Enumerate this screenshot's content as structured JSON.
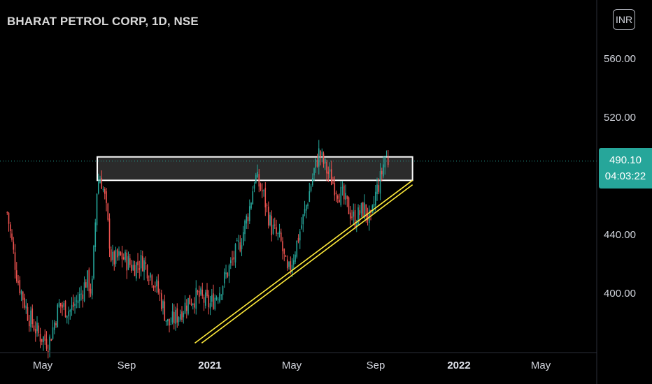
{
  "header": {
    "title": "BHARAT PETROL CORP, 1D, NSE",
    "currency": "INR"
  },
  "price_tag": {
    "price": "490.10",
    "countdown": "04:03:22",
    "color": "#26a69a"
  },
  "colors": {
    "background": "#000000",
    "up_candle": "#26a69a",
    "down_candle": "#ef5350",
    "trendline": "#ffeb3b",
    "zone_border": "#ffffff",
    "zone_fill": "#3a3a3a",
    "last_price_line": "#26a69a"
  },
  "chart_data": {
    "type": "candlestick",
    "title": "BHARAT PETROL CORP, 1D, NSE",
    "currency": "INR",
    "last_price": 490.1,
    "y_ticks": [
      {
        "value": 560,
        "label": "560.00"
      },
      {
        "value": 520,
        "label": "520.00"
      },
      {
        "value": 440,
        "label": "440.00"
      },
      {
        "value": 400,
        "label": "400.00"
      }
    ],
    "x_ticks": [
      {
        "date": "2020-05",
        "label": "May"
      },
      {
        "date": "2020-09",
        "label": "Sep"
      },
      {
        "date": "2021-01",
        "label": "2021"
      },
      {
        "date": "2021-05",
        "label": "May"
      },
      {
        "date": "2021-09",
        "label": "Sep"
      },
      {
        "date": "2022-01",
        "label": "2022"
      },
      {
        "date": "2022-05",
        "label": "May"
      }
    ],
    "price_path": [
      [
        "2020-03-10",
        455
      ],
      [
        "2020-03-25",
        410
      ],
      [
        "2020-04-10",
        385
      ],
      [
        "2020-04-25",
        372
      ],
      [
        "2020-05-10",
        366
      ],
      [
        "2020-05-25",
        392
      ],
      [
        "2020-06-10",
        388
      ],
      [
        "2020-06-25",
        398
      ],
      [
        "2020-07-05",
        410
      ],
      [
        "2020-07-12",
        400
      ],
      [
        "2020-07-20",
        475
      ],
      [
        "2020-07-25",
        480
      ],
      [
        "2020-08-01",
        462
      ],
      [
        "2020-08-10",
        422
      ],
      [
        "2020-08-25",
        425
      ],
      [
        "2020-09-10",
        418
      ],
      [
        "2020-09-25",
        422
      ],
      [
        "2020-10-10",
        410
      ],
      [
        "2020-10-20",
        398
      ],
      [
        "2020-11-01",
        378
      ],
      [
        "2020-11-15",
        385
      ],
      [
        "2020-12-01",
        395
      ],
      [
        "2020-12-15",
        398
      ],
      [
        "2021-01-01",
        392
      ],
      [
        "2021-01-15",
        402
      ],
      [
        "2021-02-01",
        420
      ],
      [
        "2021-02-15",
        435
      ],
      [
        "2021-03-01",
        460
      ],
      [
        "2021-03-08",
        480
      ],
      [
        "2021-03-20",
        468
      ],
      [
        "2021-04-01",
        445
      ],
      [
        "2021-04-15",
        435
      ],
      [
        "2021-04-25",
        412
      ],
      [
        "2021-05-05",
        428
      ],
      [
        "2021-05-20",
        455
      ],
      [
        "2021-06-01",
        480
      ],
      [
        "2021-06-10",
        496
      ],
      [
        "2021-06-20",
        485
      ],
      [
        "2021-07-01",
        475
      ],
      [
        "2021-07-15",
        465
      ],
      [
        "2021-08-01",
        450
      ],
      [
        "2021-08-15",
        458
      ],
      [
        "2021-08-25",
        448
      ],
      [
        "2021-09-01",
        468
      ],
      [
        "2021-09-08",
        478
      ],
      [
        "2021-09-15",
        494
      ],
      [
        "2021-09-20",
        490.1
      ]
    ],
    "drawings": {
      "resistance_zone": {
        "from": "2020-07-20",
        "to": "2021-10-25",
        "low": 477,
        "high": 493
      },
      "trendlines": [
        {
          "from": [
            "2020-12-10",
            366
          ],
          "to": [
            "2021-10-25",
            477
          ]
        },
        {
          "from": [
            "2020-12-20",
            366
          ],
          "to": [
            "2021-10-25",
            474
          ]
        }
      ]
    }
  }
}
